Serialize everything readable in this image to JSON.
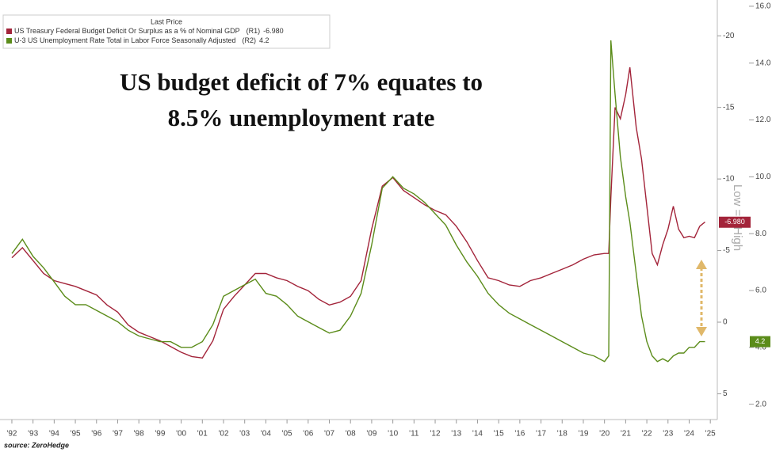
{
  "chart_data": {
    "type": "line",
    "annotation": [
      "US budget deficit of 7% equates to",
      "8.5% unemployment rate"
    ],
    "legend_title": "Last Price",
    "y_axis_label": "Low => High",
    "source": "source: ZeroHedge",
    "x": [
      1992,
      1992.5,
      1993,
      1993.5,
      1994,
      1994.5,
      1995,
      1995.5,
      1996,
      1996.5,
      1997,
      1997.5,
      1998,
      1998.5,
      1999,
      1999.5,
      2000,
      2000.5,
      2001,
      2001.5,
      2002,
      2002.5,
      2003,
      2003.5,
      2004,
      2004.5,
      2005,
      2005.5,
      2006,
      2006.5,
      2007,
      2007.5,
      2008,
      2008.5,
      2009,
      2009.5,
      2010,
      2010.5,
      2011,
      2011.5,
      2012,
      2012.5,
      2013,
      2013.5,
      2014,
      2014.5,
      2015,
      2015.5,
      2016,
      2016.5,
      2017,
      2017.5,
      2018,
      2018.5,
      2019,
      2019.5,
      2020,
      2020.2,
      2020.3,
      2020.5,
      2020.75,
      2021,
      2021.2,
      2021.5,
      2021.75,
      2022,
      2022.25,
      2022.5,
      2022.75,
      2023,
      2023.25,
      2023.5,
      2023.75,
      2024,
      2024.25,
      2024.5,
      2024.75
    ],
    "xlim": [
      1991.44,
      2025.33
    ],
    "xticks": [
      {
        "value": 1992,
        "label": "'92"
      },
      {
        "value": 1993,
        "label": "'93"
      },
      {
        "value": 1994,
        "label": "'94"
      },
      {
        "value": 1995,
        "label": "'95"
      },
      {
        "value": 1996,
        "label": "'96"
      },
      {
        "value": 1997,
        "label": "'97"
      },
      {
        "value": 1998,
        "label": "'98"
      },
      {
        "value": 1999,
        "label": "'99"
      },
      {
        "value": 2000,
        "label": "'00"
      },
      {
        "value": 2001,
        "label": "'01"
      },
      {
        "value": 2002,
        "label": "'02"
      },
      {
        "value": 2003,
        "label": "'03"
      },
      {
        "value": 2004,
        "label": "'04"
      },
      {
        "value": 2005,
        "label": "'05"
      },
      {
        "value": 2006,
        "label": "'06"
      },
      {
        "value": 2007,
        "label": "'07"
      },
      {
        "value": 2008,
        "label": "'08"
      },
      {
        "value": 2009,
        "label": "'09"
      },
      {
        "value": 2010,
        "label": "'10"
      },
      {
        "value": 2011,
        "label": "'11"
      },
      {
        "value": 2012,
        "label": "'12"
      },
      {
        "value": 2013,
        "label": "'13"
      },
      {
        "value": 2014,
        "label": "'14"
      },
      {
        "value": 2015,
        "label": "'15"
      },
      {
        "value": 2016,
        "label": "'16"
      },
      {
        "value": 2017,
        "label": "'17"
      },
      {
        "value": 2018,
        "label": "'18"
      },
      {
        "value": 2019,
        "label": "'19"
      },
      {
        "value": 2020,
        "label": "'20"
      },
      {
        "value": 2021,
        "label": "'21"
      },
      {
        "value": 2022,
        "label": "'22"
      },
      {
        "value": 2023,
        "label": "'23"
      },
      {
        "value": 2024,
        "label": "'24"
      },
      {
        "value": 2025,
        "label": "'25"
      }
    ],
    "ylim": [
      6.8,
      -22.5
    ],
    "yticks": [
      -20,
      -15,
      -10,
      -5,
      0,
      5
    ],
    "y2lim": [
      1.46,
      16.22
    ],
    "y2ticks": [
      {
        "value": 2,
        "label": "2.0"
      },
      {
        "value": 4,
        "label": "4.0"
      },
      {
        "value": 6,
        "label": "6.0"
      },
      {
        "value": 8,
        "label": "8.0"
      },
      {
        "value": 10,
        "label": "10.0"
      },
      {
        "value": 12,
        "label": "12.0"
      },
      {
        "value": 14,
        "label": "14.0"
      },
      {
        "value": 16,
        "label": "16.0"
      }
    ],
    "series": [
      {
        "name": "US Treasury Federal Budget Deficit Or Surplus as a % of Nominal GDP",
        "axis_tag": "(R1)",
        "axis": "y",
        "color": "#a3243a",
        "last_value": {
          "value": -6.98,
          "label": "-6.980"
        },
        "values": [
          -4.5,
          -5.2,
          -4.3,
          -3.4,
          -2.9,
          -2.7,
          -2.5,
          -2.2,
          -1.9,
          -1.2,
          -0.7,
          0.2,
          0.7,
          1.0,
          1.3,
          1.7,
          2.1,
          2.4,
          2.5,
          1.3,
          -0.9,
          -1.8,
          -2.6,
          -3.4,
          -3.4,
          -3.1,
          -2.9,
          -2.5,
          -2.2,
          -1.6,
          -1.2,
          -1.4,
          -1.8,
          -2.9,
          -6.5,
          -9.5,
          -10.1,
          -9.2,
          -8.7,
          -8.2,
          -7.8,
          -7.5,
          -6.7,
          -5.6,
          -4.3,
          -3.1,
          -2.9,
          -2.6,
          -2.5,
          -2.9,
          -3.1,
          -3.4,
          -3.7,
          -4.0,
          -4.4,
          -4.7,
          -4.8,
          -4.8,
          -8.7,
          -15.0,
          -14.2,
          -15.9,
          -17.8,
          -13.6,
          -11.4,
          -8.1,
          -4.8,
          -4.0,
          -5.4,
          -6.5,
          -8.1,
          -6.5,
          -5.9,
          -6.0,
          -5.9,
          -6.7,
          -7.0
        ]
      },
      {
        "name": "U-3 US Unemployment Rate Total in Labor Force Seasonally Adjusted",
        "axis_tag": "(R2)",
        "axis": "y2",
        "color": "#5b8c1a",
        "last_value": {
          "value": 4.2,
          "label": "4.2"
        },
        "values": [
          7.3,
          7.8,
          7.2,
          6.8,
          6.3,
          5.8,
          5.5,
          5.5,
          5.3,
          5.1,
          4.9,
          4.6,
          4.4,
          4.3,
          4.2,
          4.2,
          4.0,
          4.0,
          4.2,
          4.8,
          5.8,
          6.0,
          6.2,
          6.4,
          5.9,
          5.8,
          5.5,
          5.1,
          4.9,
          4.7,
          4.5,
          4.6,
          5.1,
          5.9,
          7.6,
          9.6,
          10.0,
          9.6,
          9.4,
          9.1,
          8.7,
          8.3,
          7.6,
          7.0,
          6.5,
          5.9,
          5.5,
          5.2,
          5.0,
          4.8,
          4.6,
          4.4,
          4.2,
          4.0,
          3.8,
          3.7,
          3.5,
          3.7,
          14.8,
          12.9,
          10.7,
          9.3,
          8.4,
          6.6,
          5.1,
          4.2,
          3.7,
          3.5,
          3.6,
          3.5,
          3.7,
          3.8,
          3.8,
          4.0,
          4.0,
          4.2,
          4.2
        ]
      }
    ]
  }
}
